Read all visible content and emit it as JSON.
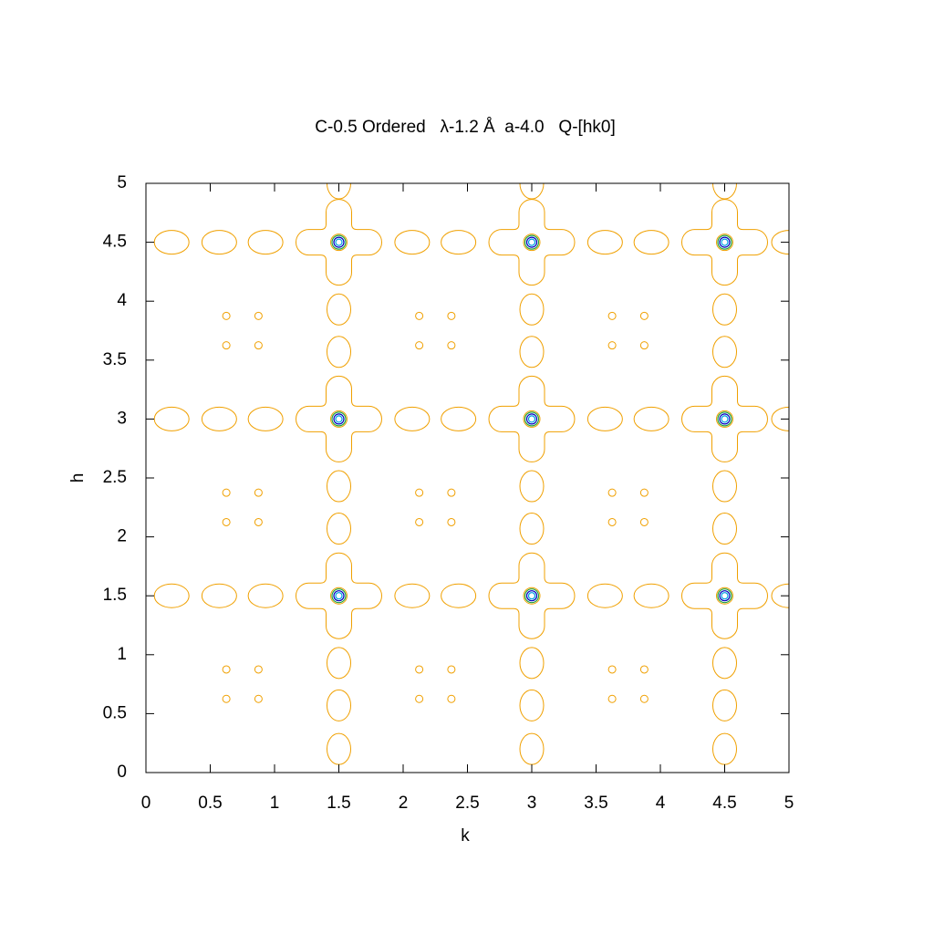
{
  "chart_data": {
    "type": "contour",
    "title": "C-0.5 Ordered   λ-1.2 Å  a-4.0   Q-[hk0]",
    "xlabel": "k",
    "ylabel": "h",
    "xlim": [
      0,
      5
    ],
    "ylim": [
      0,
      5
    ],
    "xticks": [
      0,
      0.5,
      1,
      1.5,
      2,
      2.5,
      3,
      3.5,
      4,
      4.5,
      5
    ],
    "yticks": [
      0,
      0.5,
      1,
      1.5,
      2,
      2.5,
      3,
      3.5,
      4,
      4.5,
      5
    ],
    "color": "#f0a000",
    "peak_colors": [
      "#20a040",
      "#0000c0",
      "#00a0e0"
    ],
    "cross_x": [
      1.5,
      3,
      4.5,
      1.5,
      3,
      4.5,
      1.5,
      3,
      4.5
    ],
    "cross_y": [
      1.5,
      1.5,
      1.5,
      3,
      3,
      3,
      4.5,
      4.5,
      4.5
    ],
    "hellipse_x": [
      0.2,
      0.57,
      0.93,
      2.07,
      2.43,
      3.57,
      3.93,
      5,
      0.2,
      0.57,
      0.93,
      2.07,
      2.43,
      3.57,
      3.93,
      5,
      0.2,
      0.57,
      0.93,
      2.07,
      2.43,
      3.57,
      3.93,
      5
    ],
    "hellipse_y": [
      1.5,
      1.5,
      1.5,
      1.5,
      1.5,
      1.5,
      1.5,
      1.5,
      3,
      3,
      3,
      3,
      3,
      3,
      3,
      3,
      4.5,
      4.5,
      4.5,
      4.5,
      4.5,
      4.5,
      4.5,
      4.5
    ],
    "vellipse_x": [
      1.5,
      1.5,
      1.5,
      1.5,
      1.5,
      1.5,
      1.5,
      1.5,
      3,
      3,
      3,
      3,
      3,
      3,
      3,
      3,
      4.5,
      4.5,
      4.5,
      4.5,
      4.5,
      4.5,
      4.5,
      4.5
    ],
    "vellipse_y": [
      0.2,
      0.57,
      0.93,
      2.07,
      2.43,
      3.57,
      3.93,
      5,
      0.2,
      0.57,
      0.93,
      2.07,
      2.43,
      3.57,
      3.93,
      5,
      0.2,
      0.57,
      0.93,
      2.07,
      2.43,
      3.57,
      3.93,
      5
    ],
    "dot_x": [
      0.625,
      0.875,
      2.125,
      2.375,
      3.625,
      3.875,
      0.625,
      0.875,
      2.125,
      2.375,
      3.625,
      3.875,
      0.625,
      0.875,
      2.125,
      2.375,
      3.625,
      3.875,
      0.625,
      0.875,
      2.125,
      2.375,
      3.625,
      3.875,
      0.625,
      0.875,
      2.125,
      2.375,
      3.625,
      3.875,
      0.625,
      0.875,
      2.125,
      2.375,
      3.625,
      3.875
    ],
    "dot_y": [
      0.625,
      0.625,
      0.625,
      0.625,
      0.625,
      0.625,
      0.875,
      0.875,
      0.875,
      0.875,
      0.875,
      0.875,
      2.125,
      2.125,
      2.125,
      2.125,
      2.125,
      2.125,
      2.375,
      2.375,
      2.375,
      2.375,
      2.375,
      2.375,
      3.625,
      3.625,
      3.625,
      3.625,
      3.625,
      3.625,
      3.875,
      3.875,
      3.875,
      3.875,
      3.875,
      3.875
    ]
  }
}
